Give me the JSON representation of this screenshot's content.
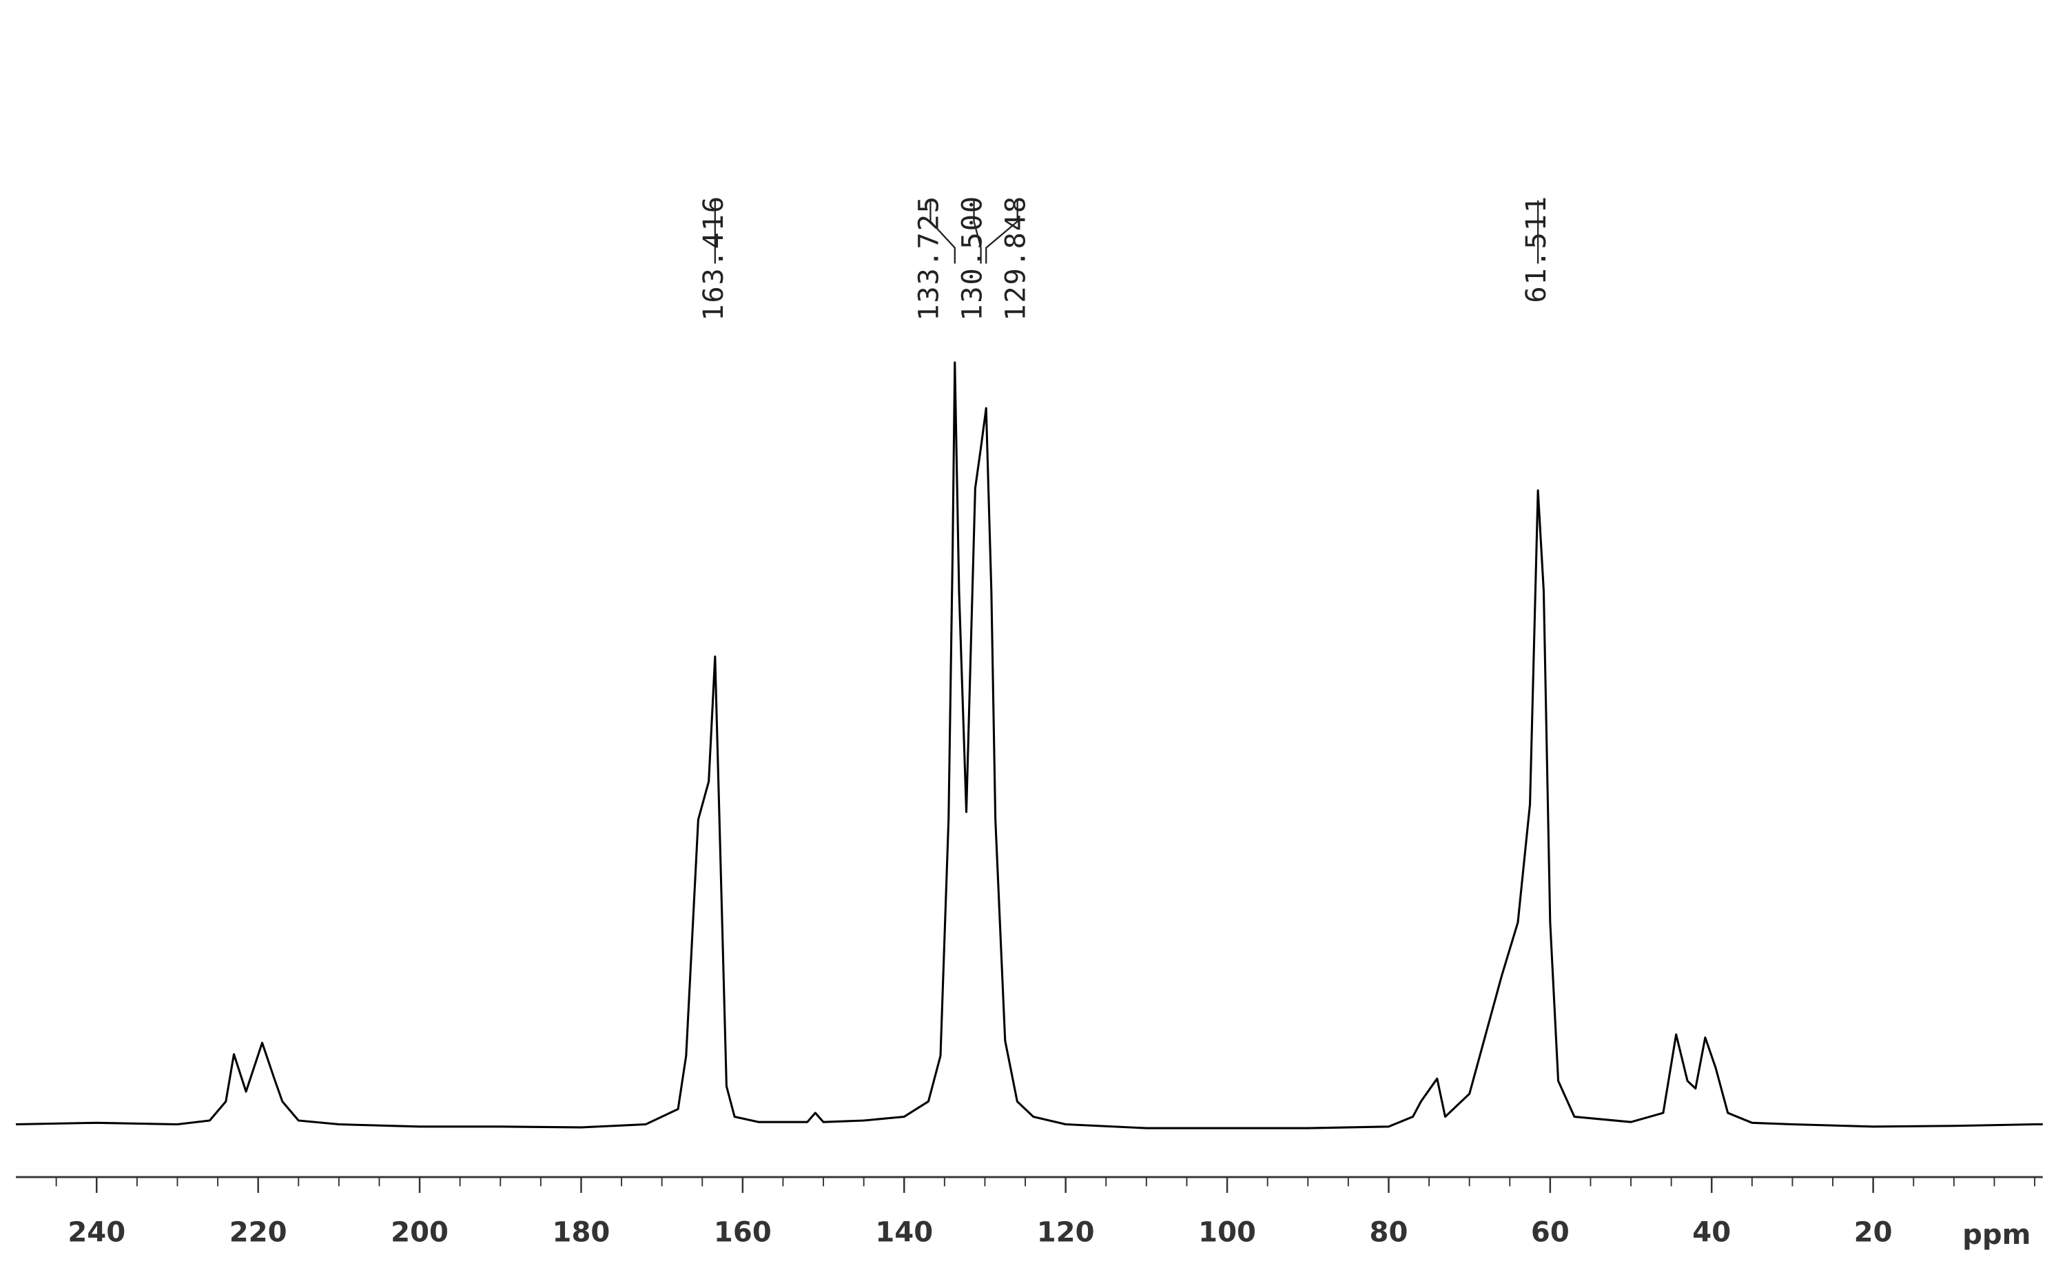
{
  "chart_data": {
    "type": "line",
    "x_label": "ppm",
    "xlim": [
      250,
      -1
    ],
    "xticks": [
      240,
      220,
      200,
      180,
      160,
      140,
      120,
      100,
      80,
      60,
      40,
      20
    ],
    "xminorticks": [
      245,
      235,
      230,
      225,
      215,
      210,
      205,
      195,
      190,
      185,
      175,
      170,
      165,
      155,
      150,
      145,
      135,
      130,
      125,
      115,
      110,
      105,
      95,
      90,
      85,
      75,
      70,
      65,
      55,
      50,
      45,
      35,
      30,
      25,
      15,
      10,
      5,
      0
    ],
    "color": "#000000",
    "peak_labels": [
      163.416,
      133.725,
      {
        "value": 130.5,
        "label": "130.500"
      },
      129.848,
      61.511
    ],
    "x": [
      250,
      240,
      230,
      226,
      224,
      223,
      221.5,
      219.5,
      218,
      217,
      215,
      210,
      200,
      190,
      180,
      172,
      168,
      167,
      165.5,
      164.2,
      163.416,
      162.8,
      162,
      161,
      158,
      152,
      151,
      150,
      145,
      140,
      137,
      135.5,
      134.5,
      134,
      133.725,
      133.2,
      132.3,
      131.2,
      130.5,
      129.848,
      129.2,
      128.7,
      127.5,
      126,
      124,
      120,
      110,
      100,
      90,
      80,
      77,
      76,
      74,
      73,
      70,
      66,
      64,
      62.5,
      61.511,
      60.8,
      60,
      59,
      57,
      50,
      46,
      44.4,
      43,
      42,
      40.8,
      39.5,
      38,
      35,
      30,
      20,
      10,
      0,
      -1
    ],
    "values": [
      0,
      0.2,
      0,
      0.5,
      3,
      9.2,
      4.3,
      10.7,
      6,
      3,
      0.5,
      0,
      -0.3,
      -0.3,
      -0.4,
      0,
      2,
      9,
      40,
      45,
      61.4,
      37,
      5,
      1,
      0.3,
      0.3,
      1.5,
      0.3,
      0.5,
      1,
      3,
      9,
      40,
      75,
      100,
      70,
      41,
      83.5,
      88.8,
      94,
      70,
      40,
      11,
      3,
      1,
      0,
      -0.5,
      -0.5,
      -0.5,
      -0.3,
      1,
      3,
      6,
      1,
      4,
      19.5,
      26.5,
      42,
      83.2,
      70,
      26.5,
      5.7,
      1,
      0.3,
      1.5,
      11.8,
      5.7,
      4.7,
      11.4,
      7.4,
      1.5,
      0.2,
      0,
      -0.3,
      -0.2,
      0,
      0
    ]
  }
}
